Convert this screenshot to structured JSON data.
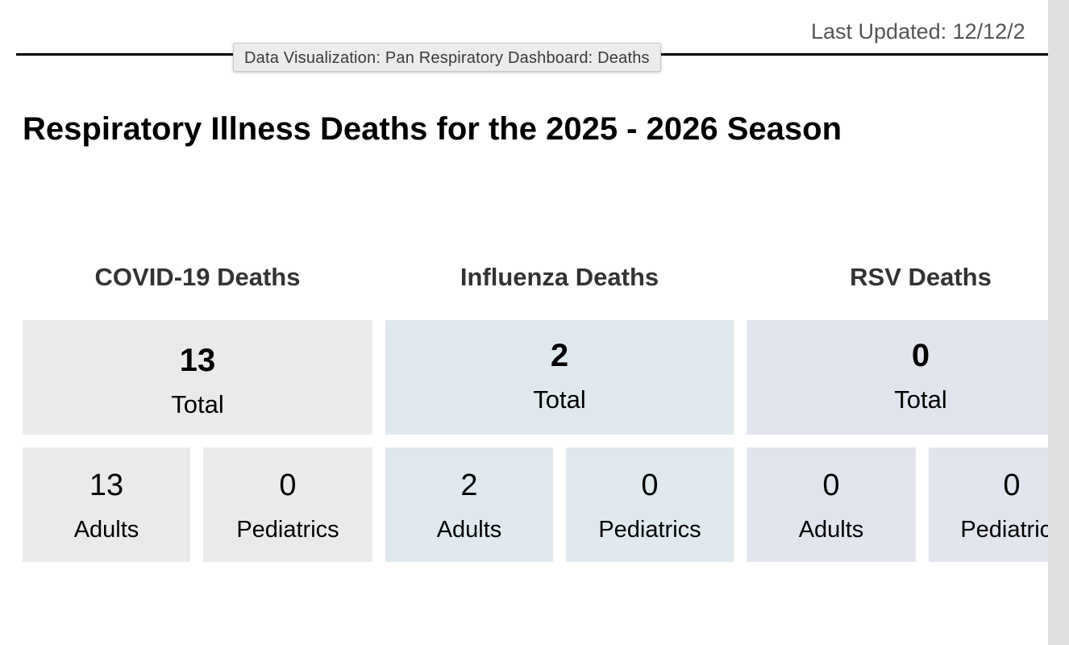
{
  "header": {
    "last_updated": "Last Updated: 12/12/2",
    "tooltip": "Data Visualization: Pan Respiratory Dashboard: Deaths"
  },
  "page": {
    "title": "Respiratory Illness Deaths for the 2025 - 2026 Season"
  },
  "sections": {
    "covid": {
      "heading": "COVID-19 Deaths",
      "total_value": "13",
      "total_label": "Total",
      "adults_value": "13",
      "adults_label": "Adults",
      "peds_value": "0",
      "peds_label": "Pediatrics",
      "color": "#eaeaea"
    },
    "flu": {
      "heading": "Influenza Deaths",
      "total_value": "2",
      "total_label": "Total",
      "adults_value": "2",
      "adults_label": "Adults",
      "peds_value": "0",
      "peds_label": "Pediatrics",
      "color": "#dfe9ee"
    },
    "rsv": {
      "heading": "RSV Deaths",
      "total_value": "0",
      "total_label": "Total",
      "adults_value": "0",
      "adults_label": "Adults",
      "peds_value": "0",
      "peds_label": "Pediatrics",
      "color": "#e3e5ee"
    }
  }
}
